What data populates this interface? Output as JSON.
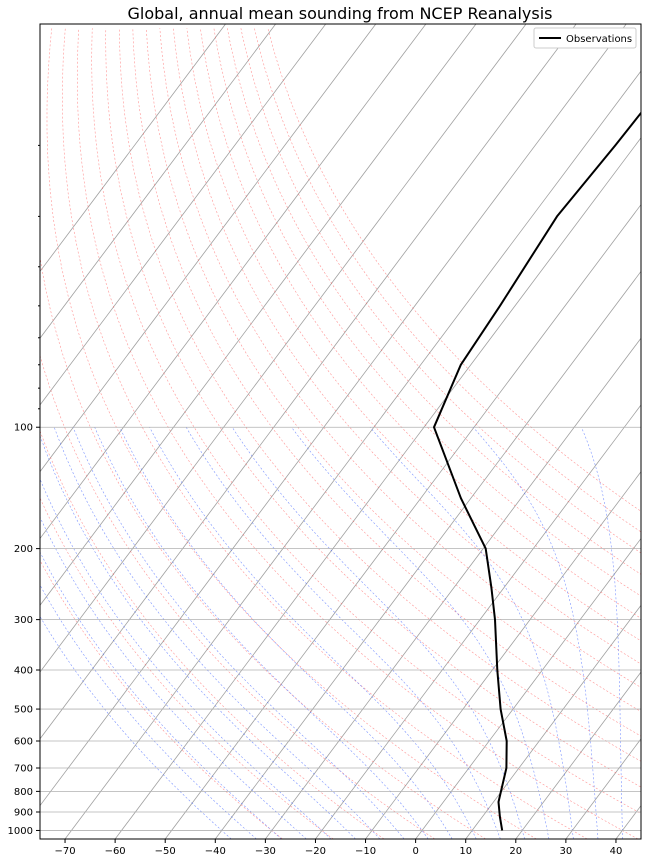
{
  "chart_data": {
    "type": "line",
    "title": "Global, annual mean sounding from NCEP Reanalysis",
    "xlabel": "",
    "ylabel": "",
    "x_axis": {
      "min": -75,
      "max": 45,
      "ticks": [
        -70,
        -60,
        -50,
        -40,
        -30,
        -20,
        -10,
        0,
        10,
        20,
        30,
        40
      ]
    },
    "y_axis": {
      "scale": "log",
      "inverted": true,
      "min": 10,
      "max": 1050,
      "ticks": [
        1000,
        900,
        800,
        700,
        600,
        500,
        400,
        300,
        200,
        100
      ]
    },
    "grid": true,
    "legend": {
      "position": "top-right",
      "entries": [
        "Observations"
      ]
    },
    "series": [
      {
        "name": "Observations",
        "color": "#000000",
        "pressure": [
          1000,
          925,
          850,
          700,
          600,
          500,
          400,
          300,
          250,
          200,
          150,
          100,
          70,
          50,
          30,
          20,
          10
        ],
        "temperature": [
          16.0,
          13.5,
          11.0,
          7.5,
          3.5,
          -2.5,
          -9.0,
          -17.0,
          -22.5,
          -29.5,
          -42.0,
          -58.0,
          -62.0,
          -63.0,
          -65.0,
          -64.0,
          -63.0
        ]
      }
    ],
    "background_lines": {
      "isotherm_color": "#a0a0a0",
      "dry_adiabat_color": "#ff6666",
      "moist_adiabat_color": "#4466ff"
    }
  }
}
